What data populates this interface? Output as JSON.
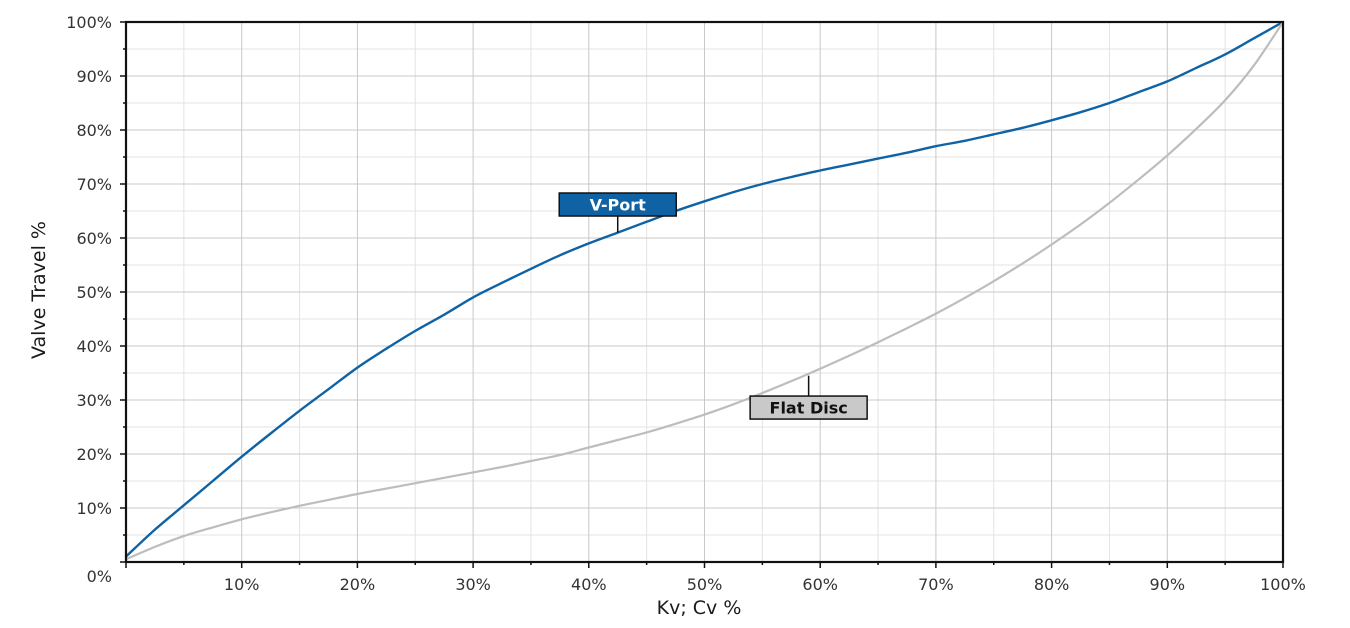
{
  "chart_data": {
    "type": "line",
    "xlabel": "Kv; Cv %",
    "ylabel": "Valve Travel %",
    "xlim": [
      0,
      100
    ],
    "ylim": [
      0,
      100
    ],
    "x_ticks": [
      10,
      20,
      30,
      40,
      50,
      60,
      70,
      80,
      90,
      100
    ],
    "x_tick_labels": [
      "10%",
      "20%",
      "30%",
      "40%",
      "50%",
      "60%",
      "70%",
      "80%",
      "90%",
      "100%"
    ],
    "y_ticks": [
      0,
      10,
      20,
      30,
      40,
      50,
      60,
      70,
      80,
      90,
      100
    ],
    "y_tick_labels": [
      "0%",
      "10%",
      "20%",
      "30%",
      "40%",
      "50%",
      "60%",
      "70%",
      "80%",
      "90%",
      "100%"
    ],
    "minor_grid_step": 5,
    "grid": true,
    "series": [
      {
        "name": "V-Port",
        "color": "#0f63a5",
        "label_fill": "#0f63a5",
        "label_text_color": "#ffffff",
        "points": [
          [
            0,
            1
          ],
          [
            2.5,
            6
          ],
          [
            5,
            10.5
          ],
          [
            7.5,
            15
          ],
          [
            10,
            19.5
          ],
          [
            12.5,
            23.8
          ],
          [
            15,
            28
          ],
          [
            17.5,
            32
          ],
          [
            20,
            36
          ],
          [
            22.5,
            39.5
          ],
          [
            25,
            42.8
          ],
          [
            27.5,
            45.8
          ],
          [
            30,
            49
          ],
          [
            32.5,
            51.7
          ],
          [
            35,
            54.3
          ],
          [
            37.5,
            56.8
          ],
          [
            40,
            59
          ],
          [
            42.5,
            61
          ],
          [
            45,
            63
          ],
          [
            47.5,
            65
          ],
          [
            50,
            66.8
          ],
          [
            52.5,
            68.5
          ],
          [
            55,
            70
          ],
          [
            57.5,
            71.3
          ],
          [
            60,
            72.5
          ],
          [
            62.5,
            73.6
          ],
          [
            65,
            74.7
          ],
          [
            67.5,
            75.8
          ],
          [
            70,
            77
          ],
          [
            72.5,
            78
          ],
          [
            75,
            79.2
          ],
          [
            77.5,
            80.4
          ],
          [
            80,
            81.8
          ],
          [
            82.5,
            83.3
          ],
          [
            85,
            85
          ],
          [
            87.5,
            87
          ],
          [
            90,
            89
          ],
          [
            92.5,
            91.5
          ],
          [
            95,
            94
          ],
          [
            97.5,
            97
          ],
          [
            100,
            100
          ]
        ]
      },
      {
        "name": "Flat Disc",
        "color": "#bdbdbd",
        "label_fill": "#c9c9c9",
        "label_text_color": "#111111",
        "points": [
          [
            0,
            0.5
          ],
          [
            2.5,
            2.8
          ],
          [
            5,
            4.8
          ],
          [
            7.5,
            6.4
          ],
          [
            10,
            7.9
          ],
          [
            12.5,
            9.2
          ],
          [
            15,
            10.4
          ],
          [
            17.5,
            11.5
          ],
          [
            20,
            12.6
          ],
          [
            22.5,
            13.6
          ],
          [
            25,
            14.6
          ],
          [
            27.5,
            15.6
          ],
          [
            30,
            16.6
          ],
          [
            32.5,
            17.6
          ],
          [
            35,
            18.7
          ],
          [
            37.5,
            19.8
          ],
          [
            40,
            21.2
          ],
          [
            42.5,
            22.6
          ],
          [
            45,
            24
          ],
          [
            47.5,
            25.6
          ],
          [
            50,
            27.3
          ],
          [
            52.5,
            29.2
          ],
          [
            55,
            31.3
          ],
          [
            57.5,
            33.5
          ],
          [
            60,
            35.8
          ],
          [
            62.5,
            38.2
          ],
          [
            65,
            40.7
          ],
          [
            67.5,
            43.3
          ],
          [
            70,
            46
          ],
          [
            72.5,
            48.9
          ],
          [
            75,
            52
          ],
          [
            77.5,
            55.3
          ],
          [
            80,
            58.8
          ],
          [
            82.5,
            62.5
          ],
          [
            85,
            66.5
          ],
          [
            87.5,
            70.8
          ],
          [
            90,
            75.3
          ],
          [
            92.5,
            80.2
          ],
          [
            95,
            85.5
          ],
          [
            97.5,
            92
          ],
          [
            100,
            100
          ]
        ]
      }
    ],
    "annotations": [
      {
        "text": "V-Port",
        "series": "V-Port",
        "anchor_x": 42.5,
        "anchor_y": 61,
        "label_x": 42.5,
        "label_y": 66.2
      },
      {
        "text": "Flat Disc",
        "series": "Flat Disc",
        "anchor_x": 59,
        "anchor_y": 34.5,
        "label_x": 59,
        "label_y": 28.6
      }
    ]
  }
}
